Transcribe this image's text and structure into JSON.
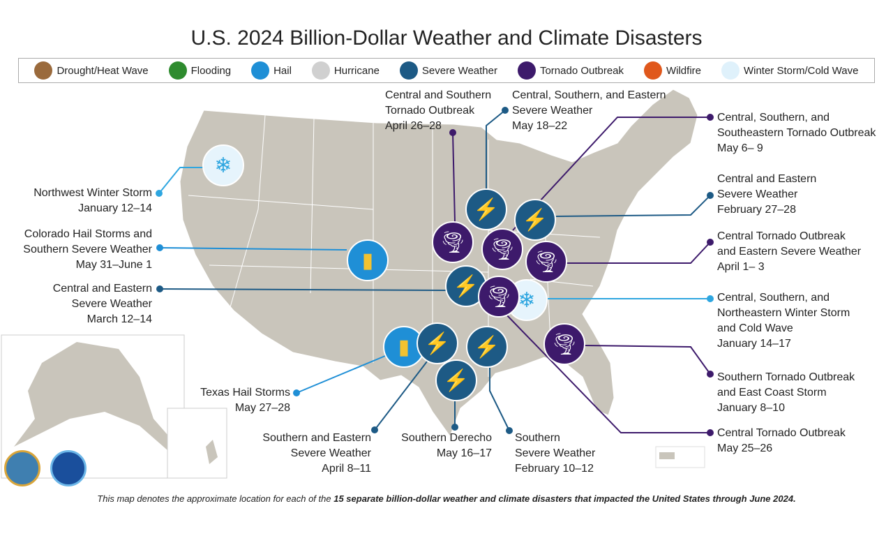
{
  "title": "U.S. 2024 Billion-Dollar Weather and Climate Disasters",
  "legend": [
    {
      "label": "Drought/Heat Wave",
      "icon": "drought-icon",
      "color": "#9a6a3c"
    },
    {
      "label": "Flooding",
      "icon": "flooding-icon",
      "color": "#2e8b2e"
    },
    {
      "label": "Hail",
      "icon": "hail-icon",
      "color": "#1f8fd6"
    },
    {
      "label": "Hurricane",
      "icon": "hurricane-icon",
      "color": "#d0d0d0"
    },
    {
      "label": "Severe Weather",
      "icon": "severe-weather-icon",
      "color": "#1d5a85"
    },
    {
      "label": "Tornado Outbreak",
      "icon": "tornado-icon",
      "color": "#3d1a6b"
    },
    {
      "label": "Wildfire",
      "icon": "wildfire-icon",
      "color": "#e0581c"
    },
    {
      "label": "Winter Storm/Cold Wave",
      "icon": "winter-storm-icon",
      "color": "#dff1fb"
    }
  ],
  "events": [
    {
      "type": "winter",
      "lines": [
        "Northwest Winter Storm",
        "January 12–14"
      ]
    },
    {
      "type": "hail",
      "lines": [
        "Colorado Hail Storms and",
        "Southern Severe Weather",
        "May 31–June 1"
      ]
    },
    {
      "type": "severe",
      "lines": [
        "Central and Eastern",
        "Severe Weather",
        "March 12–14"
      ]
    },
    {
      "type": "hail",
      "lines": [
        "Texas Hail Storms",
        "May 27–28"
      ]
    },
    {
      "type": "severe",
      "lines": [
        "Southern and Eastern",
        "Severe Weather",
        "April 8–11"
      ]
    },
    {
      "type": "severe",
      "lines": [
        "Southern Derecho",
        "May 16–17"
      ]
    },
    {
      "type": "severe",
      "lines": [
        "Southern",
        "Severe Weather",
        "February 10–12"
      ]
    },
    {
      "type": "tornado",
      "lines": [
        "Central and Southern",
        "Tornado Outbreak",
        "April 26–28"
      ]
    },
    {
      "type": "severe",
      "lines": [
        "Central, Southern, and Eastern",
        "Severe Weather",
        "May 18–22"
      ]
    },
    {
      "type": "tornado",
      "lines": [
        "Central, Southern, and",
        "Southeastern Tornado Outbreak",
        "May 6– 9"
      ]
    },
    {
      "type": "severe",
      "lines": [
        "Central and Eastern",
        "Severe Weather",
        "February 27–28"
      ]
    },
    {
      "type": "tornado",
      "lines": [
        "Central Tornado Outbreak",
        "and Eastern Severe Weather",
        "April 1– 3"
      ]
    },
    {
      "type": "winter",
      "lines": [
        "Central, Southern, and",
        "Northeastern Winter Storm",
        "and Cold Wave",
        "January 14–17"
      ]
    },
    {
      "type": "tornado",
      "lines": [
        "Southern Tornado Outbreak",
        "and East Coast Storm",
        "January 8–10"
      ]
    },
    {
      "type": "tornado",
      "lines": [
        "Central Tornado Outbreak",
        "May 25–26"
      ]
    }
  ],
  "colors": {
    "map": "#c9c5bb",
    "tornado": "#3d1a6b",
    "severe": "#1d5a85",
    "hail": "#1f8fd6",
    "winter": "#2ea6e0"
  },
  "footer": {
    "pre": "This map denotes the approximate location for each of the ",
    "bold": "15 separate billion-dollar weather and climate disasters that impacted the United States through June 2024."
  },
  "logos": [
    "Department of Commerce seal",
    "NOAA"
  ]
}
